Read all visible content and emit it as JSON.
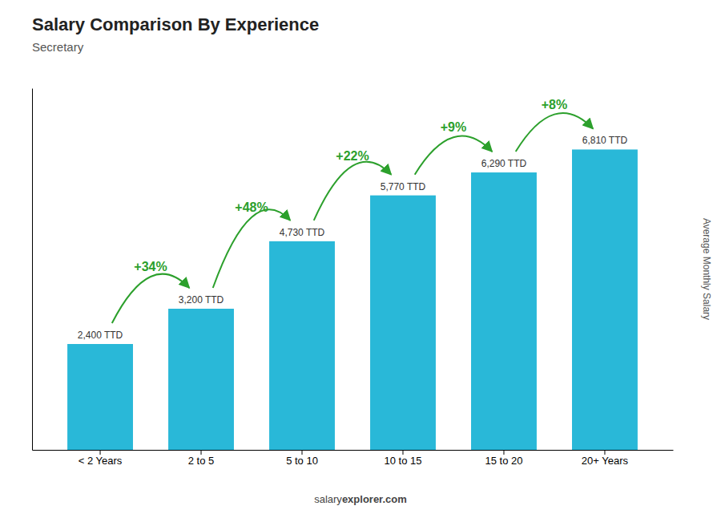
{
  "chart_data": {
    "type": "bar",
    "title": "Salary Comparison By Experience",
    "subtitle": "Secretary",
    "ylabel": "Average Monthly Salary",
    "categories": [
      "< 2 Years",
      "2 to 5",
      "5 to 10",
      "10 to 15",
      "15 to 20",
      "20+ Years"
    ],
    "values": [
      2400,
      3200,
      4730,
      5770,
      6290,
      6810
    ],
    "value_labels": [
      "2,400 TTD",
      "3,200 TTD",
      "4,730 TTD",
      "5,770 TTD",
      "6,290 TTD",
      "6,810 TTD"
    ],
    "data_labels": true,
    "annotations": [
      "+34%",
      "+48%",
      "+22%",
      "+9%",
      "+8%"
    ],
    "footer": [
      "salary",
      "explorer.com"
    ],
    "color": "#29b8d8",
    "ylim": [
      0,
      8200
    ],
    "tick_labels": "x",
    "grid": false
  }
}
